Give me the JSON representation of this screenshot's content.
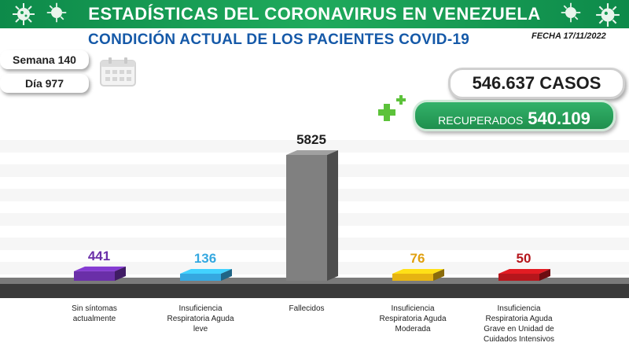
{
  "header": {
    "title": "ESTADÍSTICAS DEL CORONAVIRUS EN VENEZUELA",
    "subtitle": "CONDICIÓN ACTUAL DE LOS PACIENTES COVID-19",
    "date": "FECHA 17/11/2022",
    "banner_color": "#1a9d55"
  },
  "info": {
    "week": "Semana 140",
    "day": "Día 977"
  },
  "totals": {
    "cases": "546.637 CASOS",
    "recovered_label": "RECUPERADOS",
    "recovered_value": "540.109"
  },
  "icons": [
    "virus-icon",
    "calendar-icon",
    "plus-icon"
  ],
  "chart_data": {
    "type": "bar",
    "categories": [
      "Sin síntomas actualmente",
      "Insuficiencia Respiratoria Aguda leve",
      "Fallecidos",
      "Insuficiencia Respiratoria Aguda Moderada",
      "Insuficiencia Respiratoria Aguda Grave en Unidad de Cuidados Intensivos"
    ],
    "category_lines": [
      [
        "Sin síntomas",
        "actualmente"
      ],
      [
        "Insuficiencia",
        "Respiratoria Aguda",
        "leve"
      ],
      [
        "Fallecidos"
      ],
      [
        "Insuficiencia",
        "Respiratoria Aguda",
        "Moderada"
      ],
      [
        "Insuficiencia",
        "Respiratoria Aguda",
        "Grave en Unidad de",
        "Cuidados Intensivos"
      ]
    ],
    "values": [
      441,
      136,
      5825,
      76,
      50
    ],
    "value_labels": [
      "441",
      "136",
      "5825",
      "76",
      "50"
    ],
    "colors": [
      "#6a2fa8",
      "#35a8e0",
      "#808080",
      "#e6b312",
      "#b5161c"
    ],
    "label_colors": [
      "#6a2fa8",
      "#35a8e0",
      "#1e1e1e",
      "#e0a010",
      "#b5161c"
    ],
    "grid": true
  }
}
